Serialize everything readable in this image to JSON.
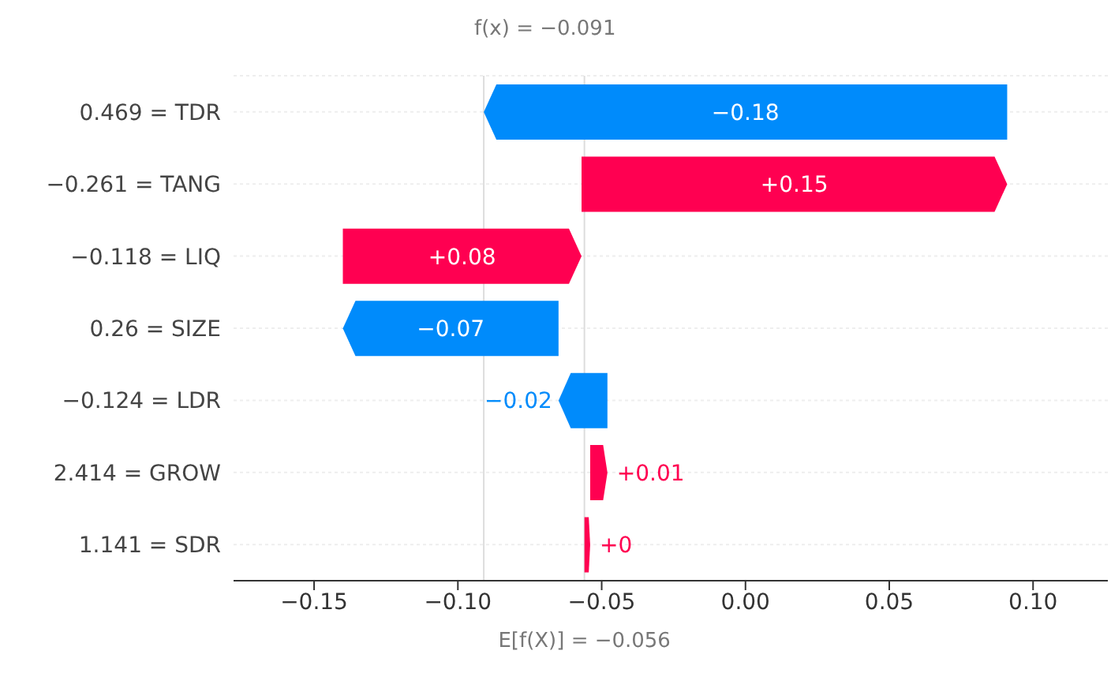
{
  "chart_data": {
    "type": "bar",
    "orientation": "horizontal",
    "categories": [
      "0.469 = TDR",
      "−0.261 = TANG",
      "−0.118 = LIQ",
      "0.26 = SIZE",
      "−0.124 = LDR",
      "2.414 = GROW",
      "1.141 = SDR"
    ],
    "base": [
      0.091,
      -0.057,
      -0.14,
      -0.065,
      -0.048,
      -0.054,
      -0.056
    ],
    "values": [
      -0.182,
      0.148,
      0.083,
      -0.075,
      -0.017,
      0.006,
      0.002
    ],
    "colors": [
      "#008bfb",
      "#ff0051",
      "#ff0051",
      "#008bfb",
      "#008bfb",
      "#ff0051",
      "#ff0051"
    ],
    "value_labels": [
      "−0.18",
      "+0.15",
      "+0.08",
      "−0.07",
      "−0.02",
      "+0.01",
      "+0"
    ],
    "xlim": [
      -0.178,
      0.126
    ],
    "xticks": [
      {
        "value": -0.15,
        "label": "−0.15"
      },
      {
        "value": -0.1,
        "label": "−0.10"
      },
      {
        "value": -0.05,
        "label": "−0.05"
      },
      {
        "value": 0,
        "label": "0.00"
      },
      {
        "value": 0.05,
        "label": "0.05"
      },
      {
        "value": 0.1,
        "label": "0.10"
      }
    ],
    "grid": "y",
    "ref_lines": [
      {
        "axis": "x",
        "value": -0.091,
        "label": "f(x) = −0.091",
        "color": "#dddddd"
      },
      {
        "axis": "x",
        "value": -0.056,
        "label": "E[f(X)] = −0.056",
        "color": "#dddddd"
      }
    ]
  }
}
